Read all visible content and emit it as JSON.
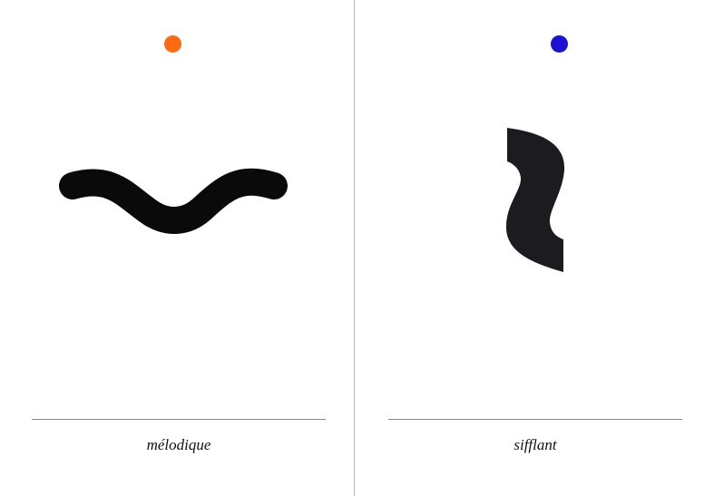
{
  "cards": [
    {
      "caption": "mélodique",
      "dot_color": "#ff6a13",
      "glyph_color": "#0a0a0a",
      "glyph_icon": "wave-stroke-icon"
    },
    {
      "caption": "sifflant",
      "dot_color": "#1a10d6",
      "glyph_color": "#1c1b1f",
      "glyph_icon": "s-curve-blade-icon"
    }
  ],
  "colors": {
    "divider": "#b8b8b8",
    "rule": "#8a8a8a",
    "background": "#ffffff"
  }
}
